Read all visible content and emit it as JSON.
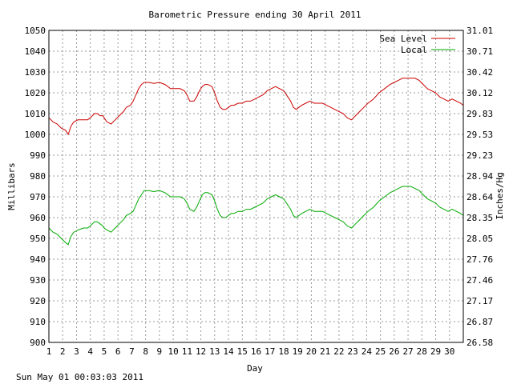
{
  "footer": {
    "timestamp": "Sun May 01 00:03:03 2011"
  },
  "chart_data": {
    "type": "line",
    "title": "Barometric Pressure ending 30 April 2011",
    "xlabel": "Day",
    "ylabel": "Millibars",
    "y2label": "Inches/Hg",
    "xlim": [
      1,
      31
    ],
    "ylim": [
      900,
      1050
    ],
    "y2lim": [
      26.58,
      31.01
    ],
    "grid": true,
    "legend_position": "top-right",
    "x_ticks": [
      "1",
      "2",
      "3",
      "4",
      "5",
      "6",
      "7",
      "8",
      "9",
      "10",
      "11",
      "12",
      "13",
      "14",
      "15",
      "16",
      "17",
      "18",
      "19",
      "20",
      "21",
      "22",
      "23",
      "24",
      "25",
      "26",
      "27",
      "28",
      "29",
      "30"
    ],
    "y_ticks": [
      "900",
      "910",
      "920",
      "930",
      "940",
      "950",
      "960",
      "970",
      "980",
      "990",
      "1000",
      "1010",
      "1020",
      "1030",
      "1040",
      "1050"
    ],
    "y2_ticks": [
      "26.58",
      "26.87",
      "27.17",
      "27.46",
      "27.76",
      "28.05",
      "28.35",
      "28.64",
      "28.94",
      "29.23",
      "29.53",
      "29.83",
      "30.12",
      "30.42",
      "30.71",
      "31.01"
    ],
    "series": [
      {
        "name": "Sea Level",
        "color": "#cc0000",
        "x": [
          1,
          1.3,
          1.6,
          1.9,
          2.2,
          2.4,
          2.6,
          2.8,
          3.1,
          3.5,
          3.8,
          4,
          4.3,
          4.5,
          4.7,
          4.9,
          5,
          5.2,
          5.5,
          5.8,
          6.1,
          6.4,
          6.6,
          6.9,
          7.1,
          7.3,
          7.5,
          7.7,
          7.9,
          8.2,
          8.6,
          9,
          9.4,
          9.8,
          10.1,
          10.5,
          10.8,
          11,
          11.2,
          11.5,
          11.7,
          11.9,
          12.1,
          12.3,
          12.5,
          12.8,
          13,
          13.2,
          13.4,
          13.6,
          13.8,
          14,
          14.2,
          14.4,
          14.7,
          15,
          15.3,
          15.6,
          15.9,
          16.2,
          16.5,
          16.8,
          17.1,
          17.4,
          17.7,
          18,
          18.3,
          18.5,
          18.7,
          18.9,
          19.1,
          19.3,
          19.6,
          19.9,
          20.2,
          20.5,
          20.8,
          21.1,
          21.4,
          21.7,
          22,
          22.3,
          22.6,
          22.9,
          23.2,
          23.5,
          23.8,
          24.1,
          24.5,
          24.9,
          25.3,
          25.7,
          26,
          26.3,
          26.6,
          26.9,
          27.2,
          27.5,
          27.8,
          28.1,
          28.4,
          28.7,
          29,
          29.3,
          29.6,
          29.9,
          30.2,
          30.5,
          30.8,
          31
        ],
        "values": [
          1008,
          1006,
          1005,
          1003,
          1002,
          1000,
          1004,
          1006,
          1007,
          1007,
          1007,
          1008,
          1010,
          1010,
          1009,
          1009,
          1008,
          1006,
          1005,
          1007,
          1009,
          1011,
          1013,
          1014,
          1016,
          1019,
          1022,
          1024,
          1025,
          1025,
          1024.5,
          1025,
          1024,
          1022,
          1022,
          1022,
          1021,
          1019,
          1016,
          1016,
          1018,
          1021,
          1023,
          1024,
          1024,
          1023,
          1020,
          1016,
          1013,
          1012,
          1012,
          1013,
          1014,
          1014,
          1015,
          1015,
          1016,
          1016,
          1017,
          1018,
          1019,
          1021,
          1022,
          1023,
          1022,
          1021,
          1018,
          1016,
          1013,
          1012,
          1013,
          1014,
          1015,
          1016,
          1015,
          1015,
          1015,
          1014,
          1013,
          1012,
          1011,
          1010,
          1008,
          1007,
          1009,
          1011,
          1013,
          1015,
          1017,
          1020,
          1022,
          1024,
          1025,
          1026,
          1027,
          1027,
          1027,
          1027,
          1026,
          1024,
          1022,
          1021,
          1020,
          1018,
          1017,
          1016,
          1017,
          1016,
          1015,
          1014
        ]
      },
      {
        "name": "Local",
        "color": "#00aa00",
        "x": [
          1,
          1.3,
          1.6,
          1.9,
          2.2,
          2.4,
          2.6,
          2.8,
          3.1,
          3.5,
          3.8,
          4,
          4.3,
          4.5,
          4.7,
          4.9,
          5,
          5.2,
          5.5,
          5.8,
          6.1,
          6.4,
          6.6,
          6.9,
          7.1,
          7.3,
          7.5,
          7.7,
          7.9,
          8.2,
          8.6,
          9,
          9.4,
          9.8,
          10.1,
          10.5,
          10.8,
          11,
          11.2,
          11.5,
          11.7,
          11.9,
          12.1,
          12.3,
          12.5,
          12.8,
          13,
          13.2,
          13.4,
          13.6,
          13.8,
          14,
          14.2,
          14.4,
          14.7,
          15,
          15.3,
          15.6,
          15.9,
          16.2,
          16.5,
          16.8,
          17.1,
          17.4,
          17.7,
          18,
          18.3,
          18.5,
          18.7,
          18.9,
          19.1,
          19.3,
          19.6,
          19.9,
          20.2,
          20.5,
          20.8,
          21.1,
          21.4,
          21.7,
          22,
          22.3,
          22.6,
          22.9,
          23.2,
          23.5,
          23.8,
          24.1,
          24.5,
          24.9,
          25.3,
          25.7,
          26,
          26.3,
          26.6,
          26.9,
          27.2,
          27.5,
          27.8,
          28.1,
          28.4,
          28.7,
          29,
          29.3,
          29.6,
          29.9,
          30.2,
          30.5,
          30.8,
          31
        ],
        "values": [
          955,
          953,
          952,
          950,
          948,
          947,
          951,
          953,
          954,
          955,
          955,
          956,
          958,
          958,
          957,
          956,
          955,
          954,
          953,
          955,
          957,
          959,
          961,
          962,
          963,
          966,
          969,
          971,
          973,
          973,
          972.5,
          973,
          972,
          970,
          970,
          970,
          969,
          967,
          964,
          963,
          965,
          968,
          971,
          972,
          972,
          971,
          968,
          964,
          961,
          960,
          960,
          961,
          962,
          962,
          963,
          963,
          964,
          964,
          965,
          966,
          967,
          969,
          970,
          971,
          970,
          969,
          966,
          964,
          961,
          960,
          961,
          962,
          963,
          964,
          963,
          963,
          963,
          962,
          961,
          960,
          959,
          958,
          956,
          955,
          957,
          959,
          961,
          963,
          965,
          968,
          970,
          972,
          973,
          974,
          975,
          975,
          975,
          974,
          973,
          971,
          969,
          968,
          967,
          965,
          964,
          963,
          964,
          963,
          962,
          961
        ]
      }
    ]
  }
}
